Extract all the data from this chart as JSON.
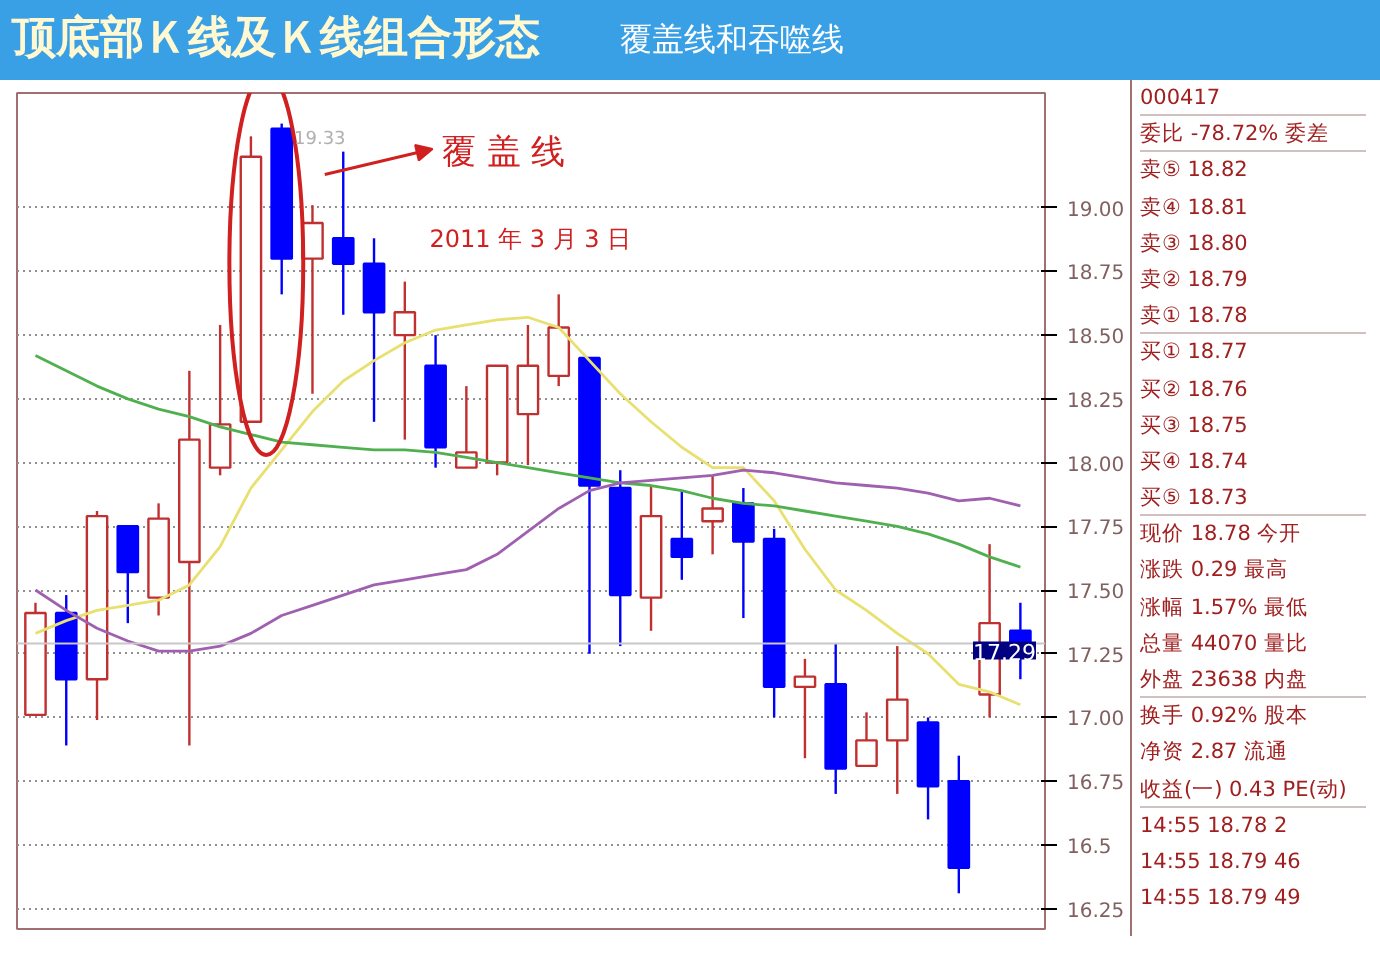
{
  "chart_data": [
    {
      "type": "candlestick",
      "title": "顶底部Ｋ线及Ｋ线组合形态",
      "subtitle": "覆盖线和吞噬线",
      "categories": [
        null,
        null,
        null,
        null,
        null,
        null,
        null,
        null,
        null,
        null,
        null,
        null,
        null,
        null,
        null,
        null,
        null,
        null,
        null,
        null,
        null,
        null,
        null,
        null,
        null,
        null,
        null,
        null,
        null,
        null,
        null,
        null,
        null
      ],
      "ohlc": [
        [
          17.01,
          17.45,
          17.01,
          17.41
        ],
        [
          17.41,
          17.48,
          16.89,
          17.15
        ],
        [
          17.15,
          17.81,
          16.99,
          17.79
        ],
        [
          17.75,
          17.75,
          17.37,
          17.57
        ],
        [
          17.47,
          17.84,
          17.4,
          17.78
        ],
        [
          17.61,
          18.36,
          16.89,
          18.09
        ],
        [
          17.98,
          18.54,
          17.95,
          18.15
        ],
        [
          18.16,
          19.28,
          18.16,
          19.2
        ],
        [
          19.31,
          19.33,
          18.66,
          18.8
        ],
        [
          18.8,
          19.01,
          18.27,
          18.94
        ],
        [
          18.88,
          19.22,
          18.58,
          18.78
        ],
        [
          18.78,
          18.88,
          18.16,
          18.59
        ],
        [
          18.5,
          18.71,
          18.09,
          18.59
        ],
        [
          18.38,
          18.5,
          17.98,
          18.06
        ],
        [
          17.98,
          18.3,
          17.98,
          18.04
        ],
        [
          18.0,
          18.38,
          17.95,
          18.38
        ],
        [
          18.19,
          18.54,
          17.99,
          18.38
        ],
        [
          18.34,
          18.66,
          18.3,
          18.53
        ],
        [
          18.41,
          18.41,
          17.25,
          17.91
        ],
        [
          17.9,
          17.97,
          17.28,
          17.48
        ],
        [
          17.47,
          17.91,
          17.34,
          17.79
        ],
        [
          17.7,
          17.89,
          17.54,
          17.63
        ],
        [
          17.77,
          17.95,
          17.64,
          17.82
        ],
        [
          17.84,
          17.9,
          17.39,
          17.69
        ],
        [
          17.7,
          17.74,
          17.0,
          17.12
        ],
        [
          17.12,
          17.23,
          16.84,
          17.16
        ],
        [
          17.13,
          17.29,
          16.7,
          16.8
        ],
        [
          16.81,
          17.02,
          16.81,
          16.91
        ],
        [
          16.91,
          17.28,
          16.7,
          17.07
        ],
        [
          16.98,
          17.0,
          16.6,
          16.73
        ],
        [
          16.75,
          16.85,
          16.31,
          16.41
        ],
        [
          17.09,
          17.68,
          17.0,
          17.37
        ],
        [
          17.34,
          17.45,
          17.15,
          17.24
        ]
      ],
      "colors": [
        "#c03030",
        "#0000ff",
        "#c03030",
        "#0000ff",
        "#c03030",
        "#c03030",
        "#c03030",
        "#c03030",
        "#0000ff",
        "#c03030",
        "#0000ff",
        "#0000ff",
        "#c03030",
        "#0000ff",
        "#c03030",
        "#c03030",
        "#c03030",
        "#c03030",
        "#0000ff",
        "#0000ff",
        "#c03030",
        "#0000ff",
        "#c03030",
        "#0000ff",
        "#0000ff",
        "#c03030",
        "#0000ff",
        "#c03030",
        "#c03030",
        "#0000ff",
        "#0000ff",
        "#c03030",
        "#0000ff"
      ],
      "series": [
        {
          "type": "line",
          "color": "#e8e070",
          "values": [
            17.33,
            17.38,
            17.42,
            17.44,
            17.46,
            17.52,
            17.67,
            17.9,
            18.05,
            18.2,
            18.32,
            18.4,
            18.47,
            18.52,
            18.54,
            18.56,
            18.57,
            18.53,
            18.4,
            18.27,
            18.16,
            18.06,
            17.98,
            17.98,
            17.85,
            17.66,
            17.5,
            17.42,
            17.33,
            17.25,
            17.13,
            17.1,
            17.05
          ]
        },
        {
          "type": "line",
          "color": "#50b050",
          "values": [
            18.42,
            18.36,
            18.3,
            18.25,
            18.21,
            18.18,
            18.14,
            18.11,
            18.08,
            18.07,
            18.06,
            18.05,
            18.05,
            18.04,
            18.02,
            18.0,
            17.98,
            17.96,
            17.94,
            17.92,
            17.91,
            17.89,
            17.86,
            17.84,
            17.83,
            17.81,
            17.79,
            17.77,
            17.75,
            17.72,
            17.68,
            17.63,
            17.59
          ]
        },
        {
          "type": "line",
          "color": "#a060b0",
          "values": [
            17.5,
            17.42,
            17.35,
            17.3,
            17.26,
            17.26,
            17.28,
            17.33,
            17.4,
            17.44,
            17.48,
            17.52,
            17.54,
            17.56,
            17.58,
            17.64,
            17.73,
            17.82,
            17.89,
            17.92,
            17.93,
            17.94,
            17.95,
            17.97,
            17.96,
            17.94,
            17.92,
            17.91,
            17.9,
            17.88,
            17.85,
            17.86,
            17.83
          ]
        }
      ],
      "ylim": [
        16.17,
        19.45
      ],
      "yticks": [
        16.25,
        16.5,
        16.75,
        {
          "value": 17.0,
          "label": "17.00"
        },
        17.25,
        {
          "value": 17.5,
          "label": "17.50"
        },
        17.75,
        {
          "value": 18.0,
          "label": "18.00"
        },
        18.25,
        {
          "value": 18.5,
          "label": "18.50"
        },
        18.75,
        {
          "value": 19.0,
          "label": "19.00"
        }
      ],
      "grid": "y",
      "ref_lines": [
        {
          "axis": "y",
          "value": 17.29,
          "label": "17.29",
          "color": "#c8c8c8"
        }
      ],
      "annotations": [
        "覆 盖 线",
        "2011 年 3 月 3 日",
        "19.33"
      ]
    },
    {
      "type": "other",
      "annotations": [
        "000417",
        "委比 -78.72% 委差",
        "卖⑤ 18.82",
        "卖④ 18.81",
        "卖③ 18.80",
        "卖② 18.79",
        "卖① 18.78",
        "买① 18.77",
        "买② 18.76",
        "买③ 18.75",
        "买④ 18.74",
        "买⑤ 18.73",
        "现价 18.78 今开",
        "涨跌 0.29 最高",
        "涨幅 1.57% 最低",
        "总量 44070 量比",
        "外盘 23638 内盘",
        "换手 0.92% 股本",
        "净资 2.87 流通",
        "收益(一) 0.43 PE(动)",
        "14:55 18.78 2",
        "14:55 18.79 46",
        "14:55 18.79 49"
      ]
    }
  ]
}
